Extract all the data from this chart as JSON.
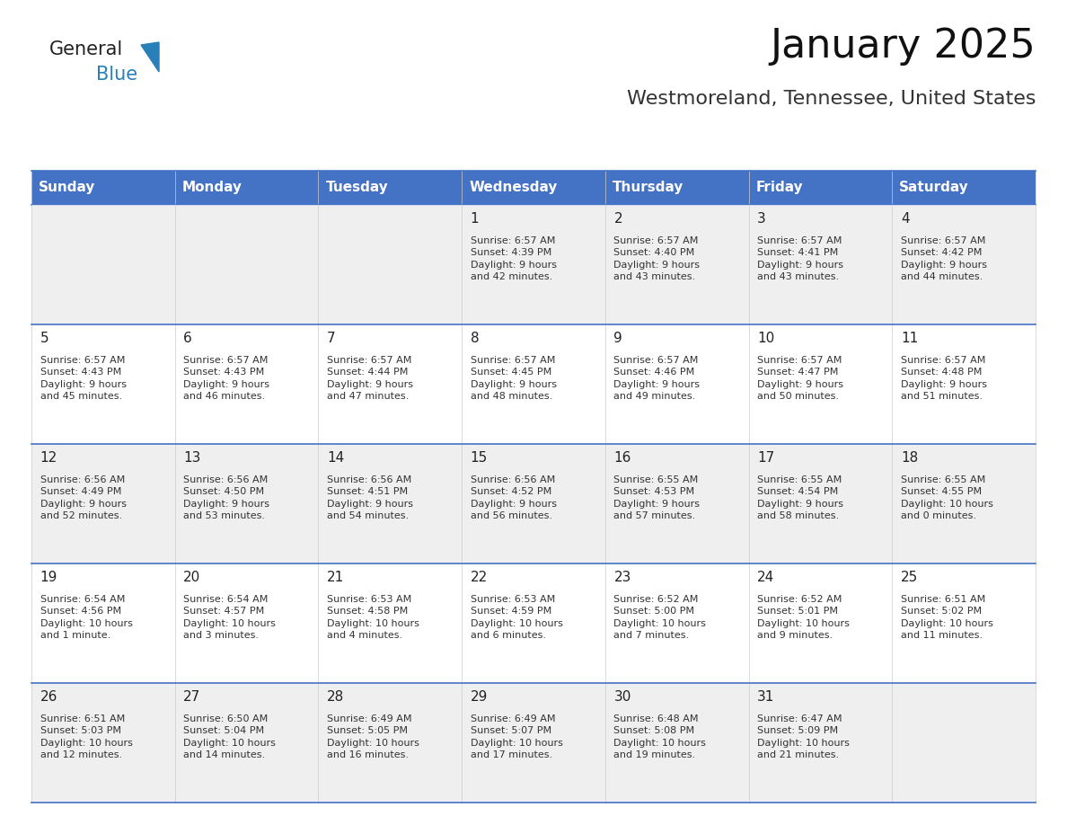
{
  "title": "January 2025",
  "subtitle": "Westmoreland, Tennessee, United States",
  "header_color": "#4472C4",
  "header_text_color": "#FFFFFF",
  "bg_color": "#FFFFFF",
  "row_even_color": "#EFEFEF",
  "row_odd_color": "#FFFFFF",
  "border_color": "#4472C4",
  "text_color": "#222222",
  "info_color": "#333333",
  "days_of_week": [
    "Sunday",
    "Monday",
    "Tuesday",
    "Wednesday",
    "Thursday",
    "Friday",
    "Saturday"
  ],
  "weeks": [
    [
      {
        "day": "",
        "info": ""
      },
      {
        "day": "",
        "info": ""
      },
      {
        "day": "",
        "info": ""
      },
      {
        "day": "1",
        "info": "Sunrise: 6:57 AM\nSunset: 4:39 PM\nDaylight: 9 hours\nand 42 minutes."
      },
      {
        "day": "2",
        "info": "Sunrise: 6:57 AM\nSunset: 4:40 PM\nDaylight: 9 hours\nand 43 minutes."
      },
      {
        "day": "3",
        "info": "Sunrise: 6:57 AM\nSunset: 4:41 PM\nDaylight: 9 hours\nand 43 minutes."
      },
      {
        "day": "4",
        "info": "Sunrise: 6:57 AM\nSunset: 4:42 PM\nDaylight: 9 hours\nand 44 minutes."
      }
    ],
    [
      {
        "day": "5",
        "info": "Sunrise: 6:57 AM\nSunset: 4:43 PM\nDaylight: 9 hours\nand 45 minutes."
      },
      {
        "day": "6",
        "info": "Sunrise: 6:57 AM\nSunset: 4:43 PM\nDaylight: 9 hours\nand 46 minutes."
      },
      {
        "day": "7",
        "info": "Sunrise: 6:57 AM\nSunset: 4:44 PM\nDaylight: 9 hours\nand 47 minutes."
      },
      {
        "day": "8",
        "info": "Sunrise: 6:57 AM\nSunset: 4:45 PM\nDaylight: 9 hours\nand 48 minutes."
      },
      {
        "day": "9",
        "info": "Sunrise: 6:57 AM\nSunset: 4:46 PM\nDaylight: 9 hours\nand 49 minutes."
      },
      {
        "day": "10",
        "info": "Sunrise: 6:57 AM\nSunset: 4:47 PM\nDaylight: 9 hours\nand 50 minutes."
      },
      {
        "day": "11",
        "info": "Sunrise: 6:57 AM\nSunset: 4:48 PM\nDaylight: 9 hours\nand 51 minutes."
      }
    ],
    [
      {
        "day": "12",
        "info": "Sunrise: 6:56 AM\nSunset: 4:49 PM\nDaylight: 9 hours\nand 52 minutes."
      },
      {
        "day": "13",
        "info": "Sunrise: 6:56 AM\nSunset: 4:50 PM\nDaylight: 9 hours\nand 53 minutes."
      },
      {
        "day": "14",
        "info": "Sunrise: 6:56 AM\nSunset: 4:51 PM\nDaylight: 9 hours\nand 54 minutes."
      },
      {
        "day": "15",
        "info": "Sunrise: 6:56 AM\nSunset: 4:52 PM\nDaylight: 9 hours\nand 56 minutes."
      },
      {
        "day": "16",
        "info": "Sunrise: 6:55 AM\nSunset: 4:53 PM\nDaylight: 9 hours\nand 57 minutes."
      },
      {
        "day": "17",
        "info": "Sunrise: 6:55 AM\nSunset: 4:54 PM\nDaylight: 9 hours\nand 58 minutes."
      },
      {
        "day": "18",
        "info": "Sunrise: 6:55 AM\nSunset: 4:55 PM\nDaylight: 10 hours\nand 0 minutes."
      }
    ],
    [
      {
        "day": "19",
        "info": "Sunrise: 6:54 AM\nSunset: 4:56 PM\nDaylight: 10 hours\nand 1 minute."
      },
      {
        "day": "20",
        "info": "Sunrise: 6:54 AM\nSunset: 4:57 PM\nDaylight: 10 hours\nand 3 minutes."
      },
      {
        "day": "21",
        "info": "Sunrise: 6:53 AM\nSunset: 4:58 PM\nDaylight: 10 hours\nand 4 minutes."
      },
      {
        "day": "22",
        "info": "Sunrise: 6:53 AM\nSunset: 4:59 PM\nDaylight: 10 hours\nand 6 minutes."
      },
      {
        "day": "23",
        "info": "Sunrise: 6:52 AM\nSunset: 5:00 PM\nDaylight: 10 hours\nand 7 minutes."
      },
      {
        "day": "24",
        "info": "Sunrise: 6:52 AM\nSunset: 5:01 PM\nDaylight: 10 hours\nand 9 minutes."
      },
      {
        "day": "25",
        "info": "Sunrise: 6:51 AM\nSunset: 5:02 PM\nDaylight: 10 hours\nand 11 minutes."
      }
    ],
    [
      {
        "day": "26",
        "info": "Sunrise: 6:51 AM\nSunset: 5:03 PM\nDaylight: 10 hours\nand 12 minutes."
      },
      {
        "day": "27",
        "info": "Sunrise: 6:50 AM\nSunset: 5:04 PM\nDaylight: 10 hours\nand 14 minutes."
      },
      {
        "day": "28",
        "info": "Sunrise: 6:49 AM\nSunset: 5:05 PM\nDaylight: 10 hours\nand 16 minutes."
      },
      {
        "day": "29",
        "info": "Sunrise: 6:49 AM\nSunset: 5:07 PM\nDaylight: 10 hours\nand 17 minutes."
      },
      {
        "day": "30",
        "info": "Sunrise: 6:48 AM\nSunset: 5:08 PM\nDaylight: 10 hours\nand 19 minutes."
      },
      {
        "day": "31",
        "info": "Sunrise: 6:47 AM\nSunset: 5:09 PM\nDaylight: 10 hours\nand 21 minutes."
      },
      {
        "day": "",
        "info": ""
      }
    ]
  ],
  "logo_text1": "General",
  "logo_text2": "Blue",
  "logo_color1": "#222222",
  "logo_color2": "#2980B9",
  "logo_triangle_color": "#2980B9",
  "title_fontsize": 32,
  "subtitle_fontsize": 16,
  "header_fontsize": 11,
  "day_number_fontsize": 11,
  "info_fontsize": 8
}
